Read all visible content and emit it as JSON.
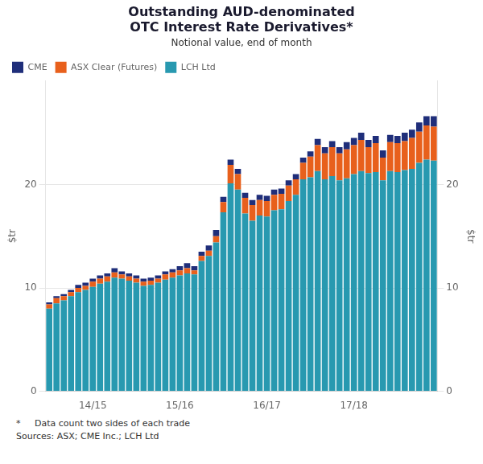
{
  "chart_data": {
    "type": "bar",
    "stacked": true,
    "title": [
      "Outstanding AUD-denominated",
      "OTC Interest Rate Derivatives*"
    ],
    "subtitle": "Notional value, end of month",
    "ylabel": "$tr",
    "y2label": "$tr",
    "footnotes": [
      "*     Data count two sides of each trade",
      "Sources: ASX; CME Inc.; LCH Ltd"
    ],
    "legend": "upper left",
    "grid": true,
    "ylim": [
      0,
      30
    ],
    "yticks": [
      0,
      10,
      20
    ],
    "y2lim": [
      0,
      30
    ],
    "y2ticks": [
      0,
      10,
      20
    ],
    "categories": [
      null,
      null,
      null,
      null,
      null,
      null,
      "14/15",
      null,
      null,
      null,
      null,
      null,
      null,
      null,
      null,
      null,
      null,
      null,
      "15/16",
      null,
      null,
      null,
      null,
      null,
      null,
      null,
      null,
      null,
      null,
      null,
      "16/17",
      null,
      null,
      null,
      null,
      null,
      null,
      null,
      null,
      null,
      null,
      null,
      "17/18",
      null,
      null,
      null,
      null,
      null,
      null,
      null,
      null,
      null,
      null,
      null
    ],
    "series": [
      {
        "name": "LCH Ltd",
        "color": "#2899b0",
        "values": [
          8.0,
          8.5,
          8.8,
          9.2,
          9.6,
          9.8,
          10.1,
          10.4,
          10.6,
          11.0,
          10.9,
          10.7,
          10.5,
          10.2,
          10.3,
          10.5,
          10.8,
          11.0,
          11.2,
          11.4,
          11.3,
          12.6,
          13.1,
          14.4,
          17.3,
          20.1,
          19.5,
          17.2,
          16.5,
          17.0,
          16.9,
          17.5,
          17.6,
          18.4,
          19.0,
          20.5,
          20.7,
          21.3,
          20.5,
          20.8,
          20.4,
          20.6,
          21.0,
          21.3,
          21.1,
          21.2,
          20.4,
          21.3,
          21.2,
          21.4,
          21.5,
          22.1,
          22.4,
          22.3
        ]
      },
      {
        "name": "ASX Clear (Futures)",
        "color": "#e8601c",
        "values": [
          0.4,
          0.5,
          0.4,
          0.4,
          0.4,
          0.4,
          0.5,
          0.5,
          0.5,
          0.5,
          0.4,
          0.4,
          0.4,
          0.4,
          0.4,
          0.4,
          0.5,
          0.5,
          0.5,
          0.5,
          0.4,
          0.5,
          0.5,
          0.6,
          1.0,
          1.8,
          1.5,
          1.5,
          1.5,
          1.5,
          1.5,
          1.5,
          1.5,
          1.5,
          1.5,
          1.6,
          2.0,
          2.5,
          2.5,
          2.8,
          2.6,
          2.8,
          2.8,
          3.0,
          2.5,
          2.8,
          2.2,
          2.8,
          2.8,
          2.8,
          3.0,
          3.0,
          3.3,
          3.3
        ]
      },
      {
        "name": "CME",
        "color": "#1f2e7a",
        "values": [
          0.2,
          0.2,
          0.2,
          0.2,
          0.3,
          0.3,
          0.3,
          0.3,
          0.3,
          0.4,
          0.3,
          0.3,
          0.3,
          0.3,
          0.3,
          0.3,
          0.3,
          0.3,
          0.4,
          0.5,
          0.4,
          0.4,
          0.5,
          0.6,
          0.5,
          0.5,
          0.5,
          0.5,
          0.5,
          0.5,
          0.5,
          0.5,
          0.5,
          0.5,
          0.5,
          0.5,
          0.5,
          0.6,
          0.6,
          0.6,
          0.6,
          0.7,
          0.7,
          0.7,
          0.7,
          0.7,
          0.7,
          0.7,
          0.7,
          0.8,
          0.8,
          0.9,
          0.9,
          1.0
        ]
      }
    ]
  }
}
